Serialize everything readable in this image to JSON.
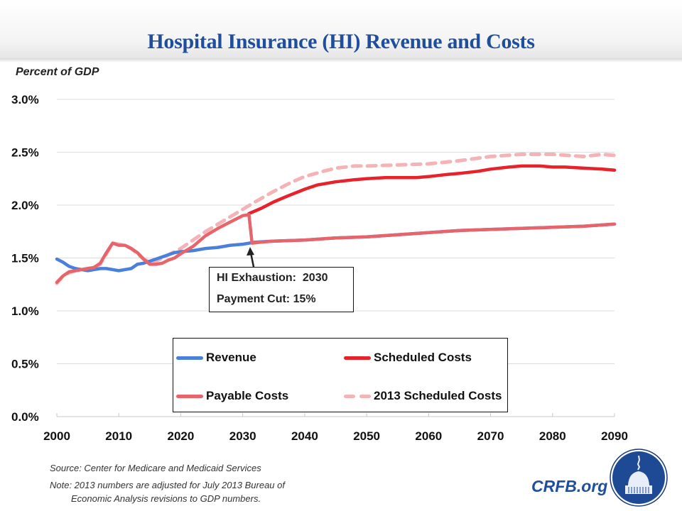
{
  "header": {
    "title": "Hospital Insurance (HI) Revenue and Costs"
  },
  "chart_data": {
    "type": "line",
    "title": "Hospital Insurance (HI) Revenue and Costs",
    "ylabel": "Percent of GDP",
    "xlabel": "",
    "xlim": [
      2000,
      2090
    ],
    "ylim": [
      0.0,
      3.0
    ],
    "x_ticks": [
      "2000",
      "2010",
      "2020",
      "2030",
      "2040",
      "2050",
      "2060",
      "2070",
      "2080",
      "2090"
    ],
    "y_ticks": [
      "0.0%",
      "0.5%",
      "1.0%",
      "1.5%",
      "2.0%",
      "2.5%",
      "3.0%"
    ],
    "grid": true,
    "legend_position": "bottom-center",
    "series": [
      {
        "name": "Revenue",
        "color": "#4a7fdc",
        "style": "solid",
        "x": [
          2000,
          2001,
          2002,
          2003,
          2004,
          2005,
          2006,
          2007,
          2008,
          2009,
          2010,
          2011,
          2012,
          2013,
          2014,
          2015,
          2016,
          2017,
          2018,
          2019,
          2020,
          2022,
          2024,
          2026,
          2028,
          2030,
          2032,
          2035,
          2040,
          2045,
          2050,
          2055,
          2060,
          2065,
          2070,
          2075,
          2080,
          2085,
          2090
        ],
        "y": [
          1.49,
          1.46,
          1.42,
          1.4,
          1.39,
          1.38,
          1.39,
          1.4,
          1.4,
          1.39,
          1.38,
          1.39,
          1.4,
          1.44,
          1.45,
          1.47,
          1.49,
          1.51,
          1.53,
          1.55,
          1.56,
          1.57,
          1.59,
          1.6,
          1.62,
          1.63,
          1.65,
          1.66,
          1.67,
          1.69,
          1.7,
          1.72,
          1.74,
          1.76,
          1.77,
          1.78,
          1.79,
          1.8,
          1.82
        ]
      },
      {
        "name": "Scheduled Costs",
        "color": "#e8222a",
        "style": "solid",
        "x": [
          2031,
          2033,
          2035,
          2037,
          2040,
          2042,
          2045,
          2048,
          2050,
          2053,
          2055,
          2058,
          2060,
          2063,
          2065,
          2068,
          2070,
          2073,
          2075,
          2078,
          2080,
          2082,
          2085,
          2088,
          2090
        ],
        "y": [
          1.92,
          1.97,
          2.03,
          2.08,
          2.15,
          2.19,
          2.22,
          2.24,
          2.25,
          2.26,
          2.26,
          2.26,
          2.27,
          2.29,
          2.3,
          2.32,
          2.34,
          2.36,
          2.37,
          2.37,
          2.36,
          2.36,
          2.35,
          2.34,
          2.33
        ]
      },
      {
        "name": "Payable Costs",
        "color": "#e8646b",
        "style": "solid",
        "x": [
          2000,
          2001,
          2002,
          2003,
          2004,
          2005,
          2006,
          2007,
          2008,
          2009,
          2010,
          2011,
          2012,
          2013,
          2014,
          2015,
          2016,
          2017,
          2018,
          2019,
          2020,
          2022,
          2024,
          2026,
          2028,
          2030,
          2031,
          2031.5,
          2033,
          2035,
          2040,
          2045,
          2050,
          2055,
          2060,
          2065,
          2070,
          2075,
          2080,
          2085,
          2090
        ],
        "y": [
          1.27,
          1.33,
          1.37,
          1.38,
          1.39,
          1.4,
          1.41,
          1.45,
          1.55,
          1.64,
          1.62,
          1.62,
          1.59,
          1.55,
          1.49,
          1.44,
          1.44,
          1.45,
          1.48,
          1.5,
          1.54,
          1.61,
          1.71,
          1.78,
          1.84,
          1.9,
          1.91,
          1.64,
          1.65,
          1.66,
          1.67,
          1.69,
          1.7,
          1.72,
          1.74,
          1.76,
          1.77,
          1.78,
          1.79,
          1.8,
          1.82
        ]
      },
      {
        "name": "2013 Scheduled Costs",
        "color": "#f4b3b6",
        "style": "dashed",
        "x": [
          2000,
          2001,
          2002,
          2003,
          2004,
          2005,
          2006,
          2007,
          2008,
          2009,
          2010,
          2011,
          2012,
          2013,
          2014,
          2015,
          2016,
          2017,
          2018,
          2019,
          2020,
          2022,
          2024,
          2026,
          2028,
          2030,
          2032,
          2035,
          2038,
          2040,
          2043,
          2045,
          2048,
          2050,
          2055,
          2060,
          2065,
          2070,
          2075,
          2080,
          2085,
          2088,
          2090
        ],
        "y": [
          1.26,
          1.33,
          1.36,
          1.38,
          1.39,
          1.4,
          1.41,
          1.44,
          1.54,
          1.64,
          1.63,
          1.62,
          1.59,
          1.54,
          1.49,
          1.46,
          1.47,
          1.5,
          1.53,
          1.56,
          1.59,
          1.67,
          1.75,
          1.82,
          1.89,
          1.96,
          2.03,
          2.13,
          2.22,
          2.27,
          2.32,
          2.35,
          2.37,
          2.37,
          2.38,
          2.39,
          2.42,
          2.46,
          2.48,
          2.48,
          2.46,
          2.48,
          2.47
        ]
      }
    ],
    "annotations": [
      {
        "text": "HI Exhaustion:  2030",
        "x": 2031,
        "y": 1.63
      },
      {
        "text": "Payment Cut: 15%"
      }
    ],
    "source": "Source: Center for Medicare and Medicaid Services",
    "note": "Note: 2013 numbers are adjusted for July 2013 Bureau of Economic Analysis revisions to GDP numbers."
  },
  "annotation": {
    "line1": "HI Exhaustion:  2030",
    "line2": "Payment Cut: 15%"
  },
  "legend": {
    "items": [
      {
        "label": "Revenue"
      },
      {
        "label": "Scheduled Costs"
      },
      {
        "label": "Payable Costs"
      },
      {
        "label": "2013 Scheduled Costs"
      }
    ]
  },
  "footer": {
    "source": "Source: Center for Medicare and Medicaid Services",
    "note_line1": "Note: 2013 numbers are adjusted for July 2013 Bureau of",
    "note_line2": "Economic Analysis revisions to GDP numbers.",
    "brand": "CRFB.org",
    "logo_icon": "capitol-dome-seal-icon"
  }
}
